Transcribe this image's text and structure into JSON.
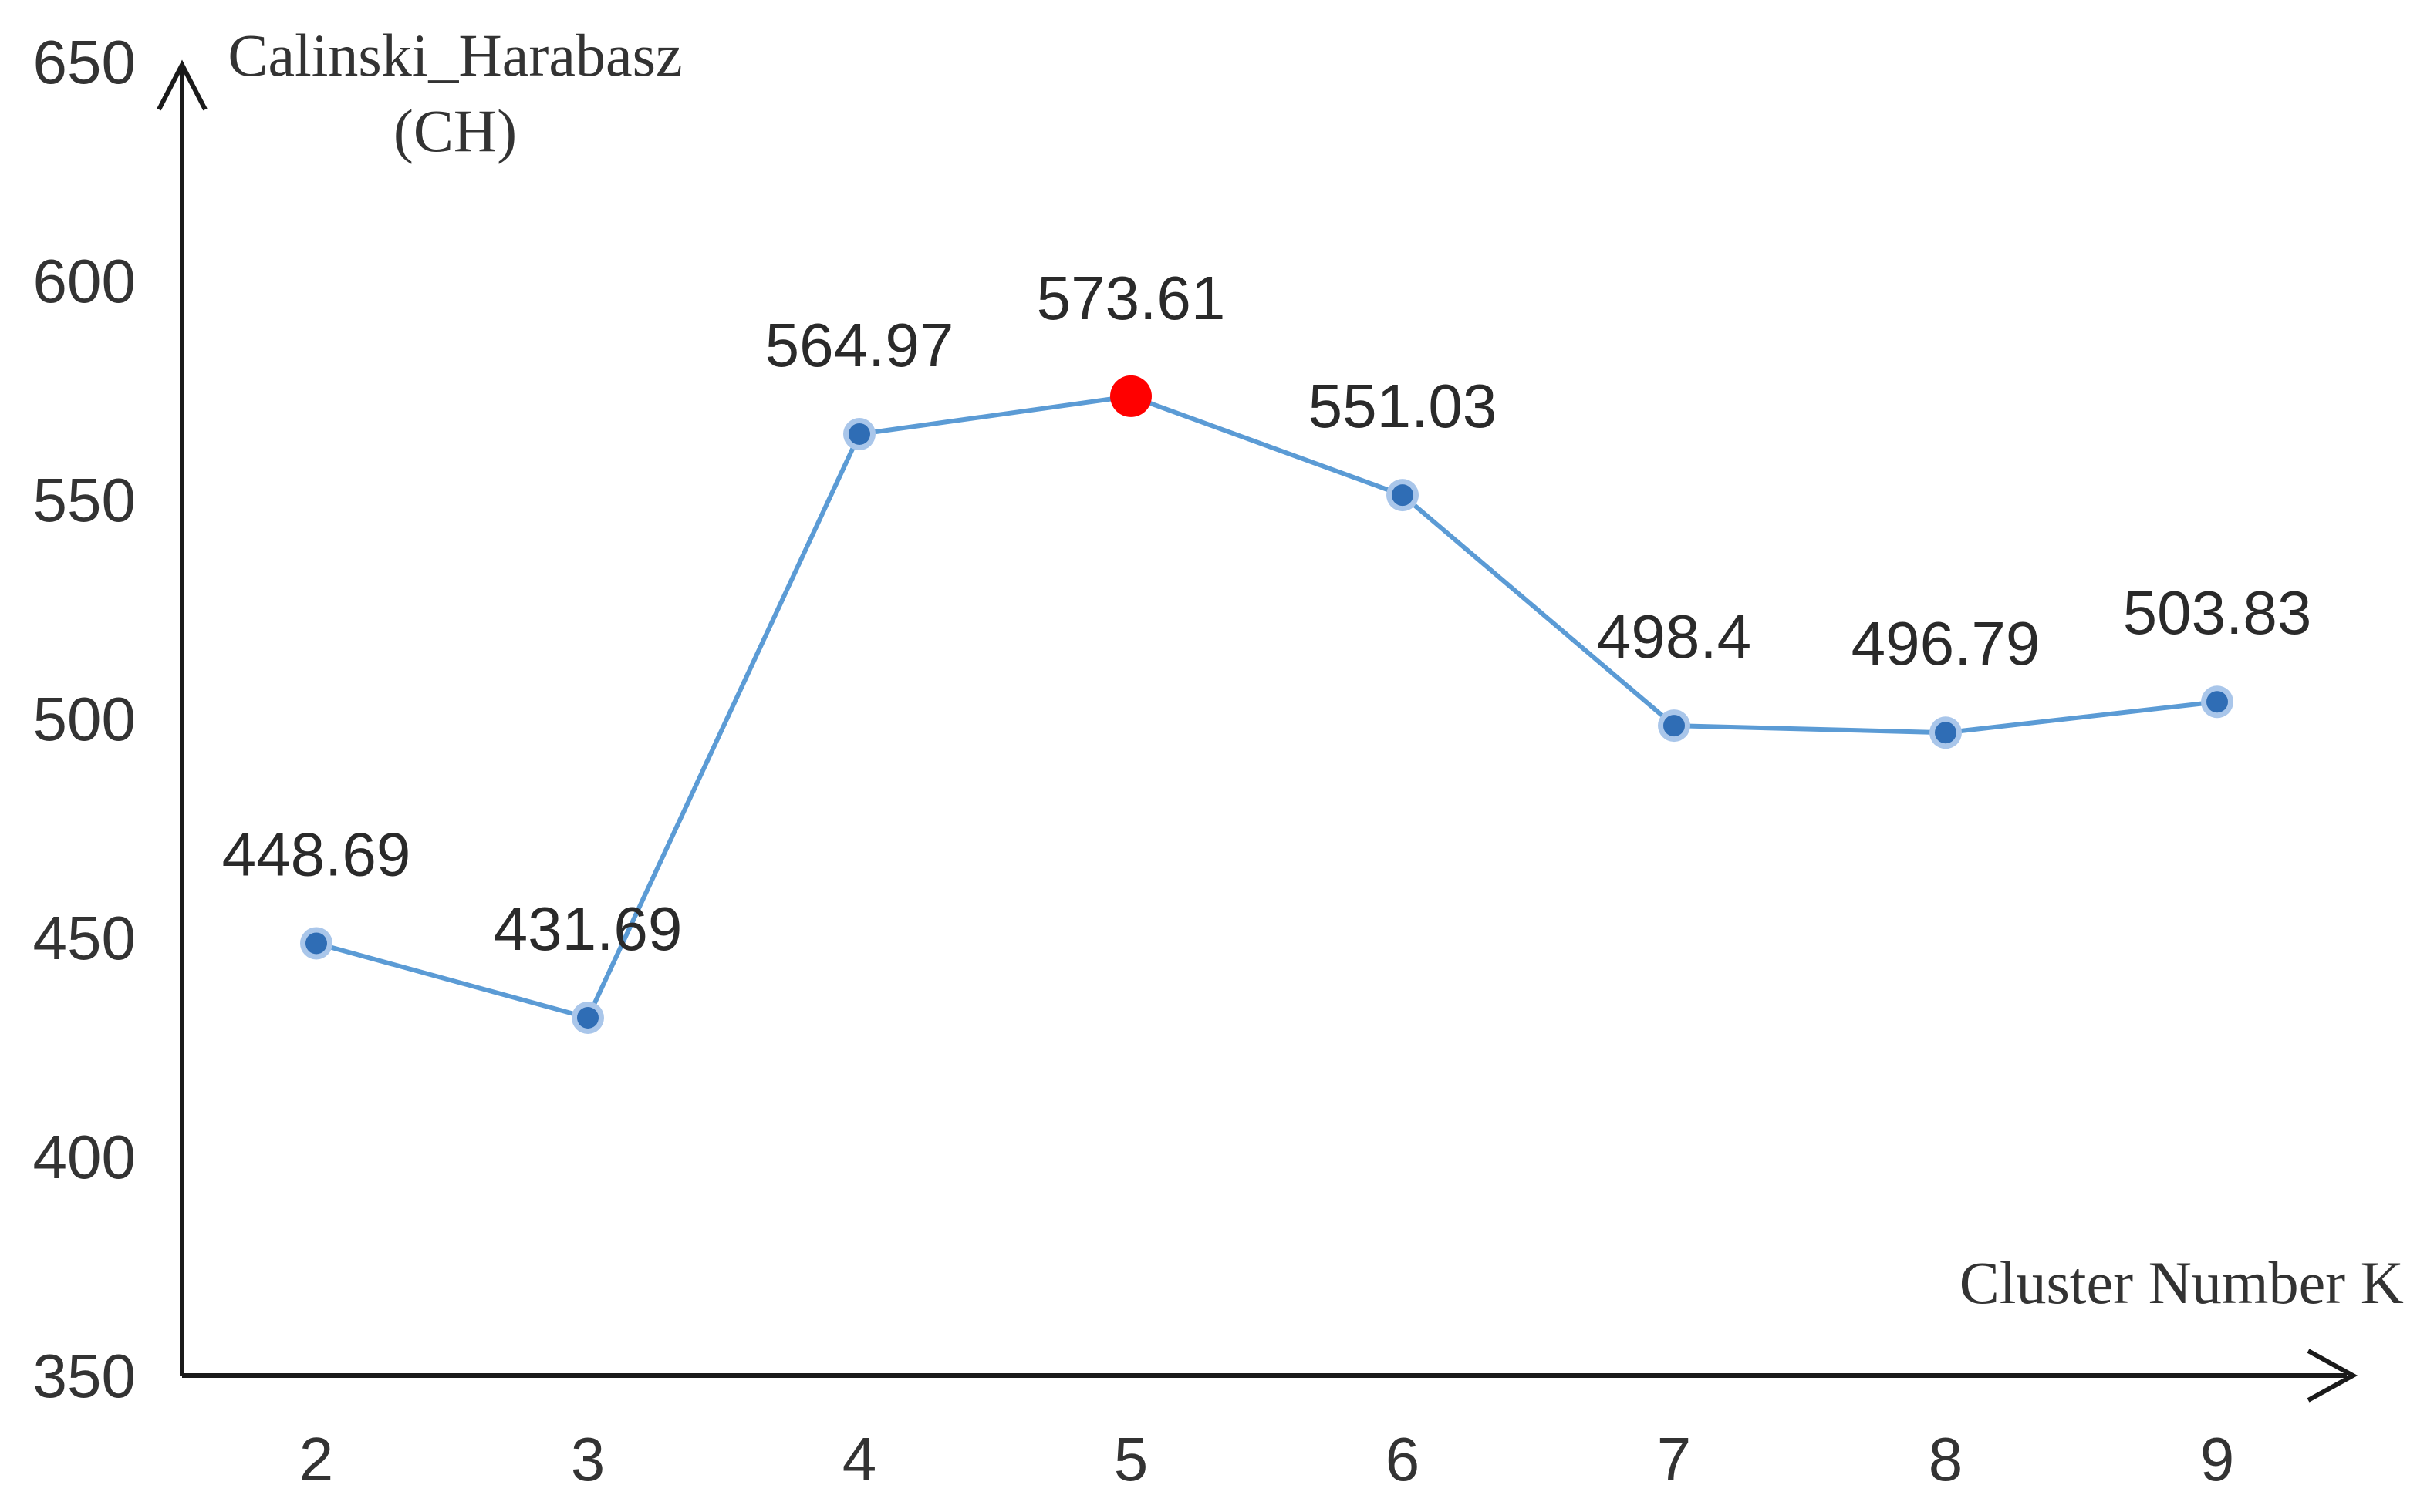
{
  "chart_data": {
    "type": "line",
    "title": "",
    "xlabel": "Cluster Number K",
    "ylabel_line1": "Calinski_Harabasz",
    "ylabel_line2": "(CH)",
    "categories": [
      "2",
      "3",
      "4",
      "5",
      "6",
      "7",
      "8",
      "9"
    ],
    "values": [
      448.69,
      431.69,
      564.97,
      573.61,
      551.03,
      498.4,
      496.79,
      503.83
    ],
    "value_labels": [
      "448.69",
      "431.69",
      "564.97",
      "573.61",
      "551.03",
      "498.4",
      "496.79",
      "503.83"
    ],
    "highlight_index": 3,
    "ylim": [
      350,
      650
    ],
    "yticks": [
      "350",
      "400",
      "450",
      "500",
      "550",
      "600",
      "650"
    ],
    "grid": false,
    "colors": {
      "line": "#5b9bd5",
      "point": "#2f6db5",
      "point_halo": "#a9c6ea",
      "highlight": "#ff0000",
      "axis": "#1a1a1a"
    }
  }
}
